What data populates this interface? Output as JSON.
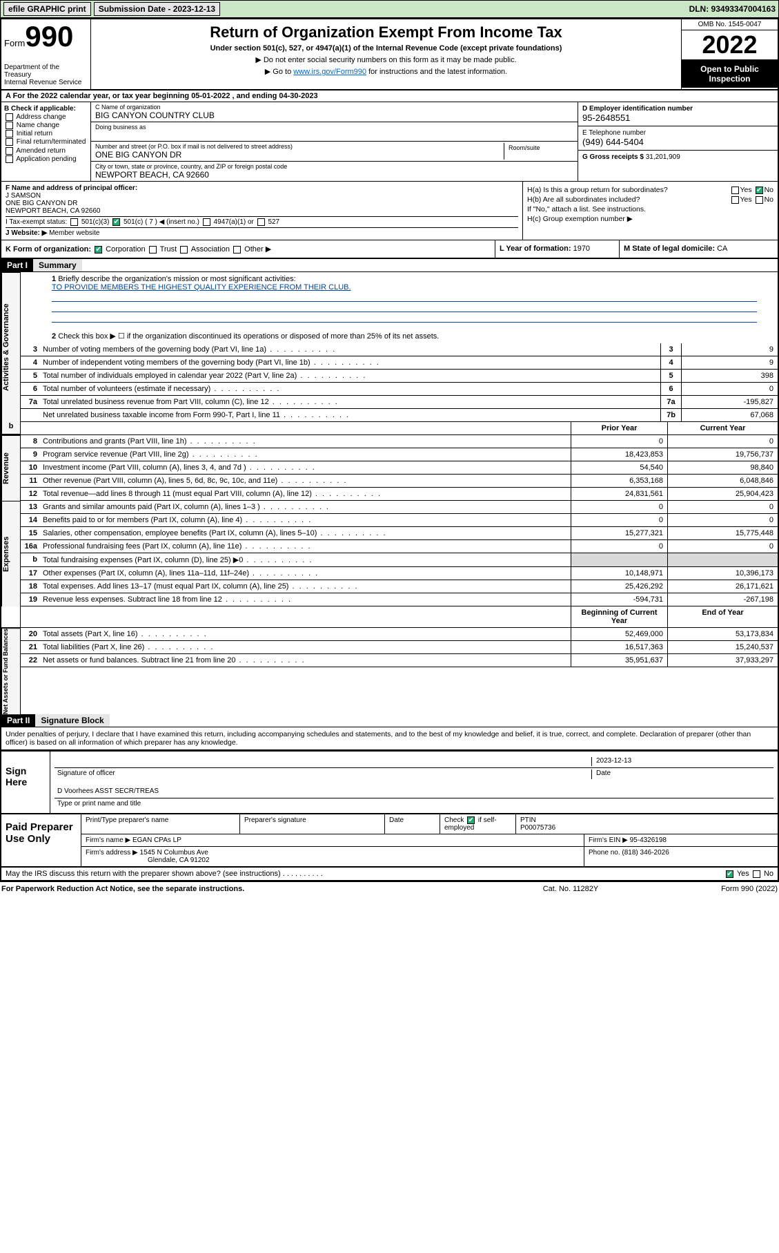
{
  "topbar": {
    "efile": "efile GRAPHIC print",
    "sub_label": "Submission Date - 2023-12-13",
    "dln": "DLN: 93493347004163"
  },
  "header": {
    "form_word": "Form",
    "form_num": "990",
    "dept": "Department of the Treasury",
    "irs": "Internal Revenue Service",
    "title": "Return of Organization Exempt From Income Tax",
    "sub": "Under section 501(c), 527, or 4947(a)(1) of the Internal Revenue Code (except private foundations)",
    "note1": "▶ Do not enter social security numbers on this form as it may be made public.",
    "note2_pre": "▶ Go to ",
    "note2_link": "www.irs.gov/Form990",
    "note2_post": " for instructions and the latest information.",
    "omb": "OMB No. 1545-0047",
    "year": "2022",
    "open": "Open to Public Inspection"
  },
  "rowA": "A For the 2022 calendar year, or tax year beginning 05-01-2022    , and ending 04-30-2023",
  "colB": {
    "title": "B Check if applicable:",
    "items": [
      "Address change",
      "Name change",
      "Initial return",
      "Final return/terminated",
      "Amended return",
      "Application pending"
    ]
  },
  "colC": {
    "name_lbl": "C Name of organization",
    "name": "BIG CANYON COUNTRY CLUB",
    "dba_lbl": "Doing business as",
    "addr_lbl": "Number and street (or P.O. box if mail is not delivered to street address)",
    "room_lbl": "Room/suite",
    "addr": "ONE BIG CANYON DR",
    "city_lbl": "City or town, state or province, country, and ZIP or foreign postal code",
    "city": "NEWPORT BEACH, CA  92660"
  },
  "colD": {
    "ein_lbl": "D Employer identification number",
    "ein": "95-2648551",
    "tel_lbl": "E Telephone number",
    "tel": "(949) 644-5404",
    "gross_lbl": "G Gross receipts $",
    "gross": "31,201,909"
  },
  "rowF": {
    "lbl": "F Name and address of principal officer:",
    "name": "J SAMSON",
    "addr1": "ONE BIG CANYON DR",
    "addr2": "NEWPORT BEACH, CA  92660"
  },
  "rowI": {
    "lbl": "I   Tax-exempt status:",
    "c3": "501(c)(3)",
    "c": "501(c) ( 7 ) ◀ (insert no.)",
    "a1": "4947(a)(1) or",
    "s527": "527"
  },
  "rowJ": {
    "lbl": "J   Website: ▶",
    "val": "Member website"
  },
  "rowH": {
    "ha": "H(a)  Is this a group return for subordinates?",
    "hb": "H(b)  Are all subordinates included?",
    "hb2": "If \"No,\" attach a list. See instructions.",
    "hc": "H(c)  Group exemption number ▶",
    "yes": "Yes",
    "no": "No"
  },
  "rowK": {
    "form_lbl": "K Form of organization:",
    "opts": [
      "Corporation",
      "Trust",
      "Association",
      "Other ▶"
    ],
    "l_lbl": "L Year of formation:",
    "l_val": "1970",
    "m_lbl": "M State of legal domicile:",
    "m_val": "CA"
  },
  "part1": {
    "hdr": "Part I",
    "title": "Summary",
    "q1": "Briefly describe the organization's mission or most significant activities:",
    "mission": "TO PROVIDE MEMBERS THE HIGHEST QUALITY EXPERIENCE FROM THEIR CLUB.",
    "q2": "Check this box ▶ ☐  if the organization discontinued its operations or disposed of more than 25% of its net assets.",
    "lines_gov": [
      {
        "n": "3",
        "t": "Number of voting members of the governing body (Part VI, line 1a)",
        "b": "3",
        "v": "9"
      },
      {
        "n": "4",
        "t": "Number of independent voting members of the governing body (Part VI, line 1b)",
        "b": "4",
        "v": "9"
      },
      {
        "n": "5",
        "t": "Total number of individuals employed in calendar year 2022 (Part V, line 2a)",
        "b": "5",
        "v": "398"
      },
      {
        "n": "6",
        "t": "Total number of volunteers (estimate if necessary)",
        "b": "6",
        "v": "0"
      },
      {
        "n": "7a",
        "t": "Total unrelated business revenue from Part VIII, column (C), line 12",
        "b": "7a",
        "v": "-195,827"
      },
      {
        "n": "",
        "t": "Net unrelated business taxable income from Form 990-T, Part I, line 11",
        "b": "7b",
        "v": "67,068"
      }
    ],
    "twocol_h1": "Prior Year",
    "twocol_h2": "Current Year",
    "lines_rev": [
      {
        "n": "8",
        "t": "Contributions and grants (Part VIII, line 1h)",
        "p": "0",
        "c": "0"
      },
      {
        "n": "9",
        "t": "Program service revenue (Part VIII, line 2g)",
        "p": "18,423,853",
        "c": "19,756,737"
      },
      {
        "n": "10",
        "t": "Investment income (Part VIII, column (A), lines 3, 4, and 7d )",
        "p": "54,540",
        "c": "98,840"
      },
      {
        "n": "11",
        "t": "Other revenue (Part VIII, column (A), lines 5, 6d, 8c, 9c, 10c, and 11e)",
        "p": "6,353,168",
        "c": "6,048,846"
      },
      {
        "n": "12",
        "t": "Total revenue—add lines 8 through 11 (must equal Part VIII, column (A), line 12)",
        "p": "24,831,561",
        "c": "25,904,423"
      }
    ],
    "lines_exp": [
      {
        "n": "13",
        "t": "Grants and similar amounts paid (Part IX, column (A), lines 1–3 )",
        "p": "0",
        "c": "0"
      },
      {
        "n": "14",
        "t": "Benefits paid to or for members (Part IX, column (A), line 4)",
        "p": "0",
        "c": "0"
      },
      {
        "n": "15",
        "t": "Salaries, other compensation, employee benefits (Part IX, column (A), lines 5–10)",
        "p": "15,277,321",
        "c": "15,775,448"
      },
      {
        "n": "16a",
        "t": "Professional fundraising fees (Part IX, column (A), line 11e)",
        "p": "0",
        "c": "0"
      },
      {
        "n": "b",
        "t": "Total fundraising expenses (Part IX, column (D), line 25) ▶0",
        "p": "",
        "c": "",
        "gray": true
      },
      {
        "n": "17",
        "t": "Other expenses (Part IX, column (A), lines 11a–11d, 11f–24e)",
        "p": "10,148,971",
        "c": "10,396,173"
      },
      {
        "n": "18",
        "t": "Total expenses. Add lines 13–17 (must equal Part IX, column (A), line 25)",
        "p": "25,426,292",
        "c": "26,171,621"
      },
      {
        "n": "19",
        "t": "Revenue less expenses. Subtract line 18 from line 12",
        "p": "-594,731",
        "c": "-267,198"
      }
    ],
    "twocol_h3": "Beginning of Current Year",
    "twocol_h4": "End of Year",
    "lines_net": [
      {
        "n": "20",
        "t": "Total assets (Part X, line 16)",
        "p": "52,469,000",
        "c": "53,173,834"
      },
      {
        "n": "21",
        "t": "Total liabilities (Part X, line 26)",
        "p": "16,517,363",
        "c": "15,240,537"
      },
      {
        "n": "22",
        "t": "Net assets or fund balances. Subtract line 21 from line 20",
        "p": "35,951,637",
        "c": "37,933,297"
      }
    ],
    "vtabs": [
      "Activities & Governance",
      "Revenue",
      "Expenses",
      "Net Assets or Fund Balances"
    ]
  },
  "part2": {
    "hdr": "Part II",
    "title": "Signature Block",
    "penalty": "Under penalties of perjury, I declare that I have examined this return, including accompanying schedules and statements, and to the best of my knowledge and belief, it is true, correct, and complete. Declaration of preparer (other than officer) is based on all information of which preparer has any knowledge.",
    "sign_here": "Sign Here",
    "sig_officer": "Signature of officer",
    "sig_date": "2023-12-13",
    "date_lbl": "Date",
    "officer_name": "D Voorhees ASST SECR/TREAS",
    "type_lbl": "Type or print name and title",
    "paid": "Paid Preparer Use Only",
    "p_name_lbl": "Print/Type preparer's name",
    "p_sig_lbl": "Preparer's signature",
    "p_date_lbl": "Date",
    "p_check": "Check",
    "p_self": "if self-employed",
    "ptin_lbl": "PTIN",
    "ptin": "P00075736",
    "firm_name_lbl": "Firm's name  ▶",
    "firm_name": "EGAN CPAs LP",
    "firm_ein_lbl": "Firm's EIN ▶",
    "firm_ein": "95-4326198",
    "firm_addr_lbl": "Firm's address ▶",
    "firm_addr1": "1545 N Columbus Ave",
    "firm_addr2": "Glendale, CA  91202",
    "phone_lbl": "Phone no.",
    "phone": "(818) 346-2026",
    "may": "May the IRS discuss this return with the preparer shown above? (see instructions)",
    "yes": "Yes",
    "no": "No"
  },
  "footer": {
    "l": "For Paperwork Reduction Act Notice, see the separate instructions.",
    "m": "Cat. No. 11282Y",
    "r": "Form 990 (2022)"
  }
}
